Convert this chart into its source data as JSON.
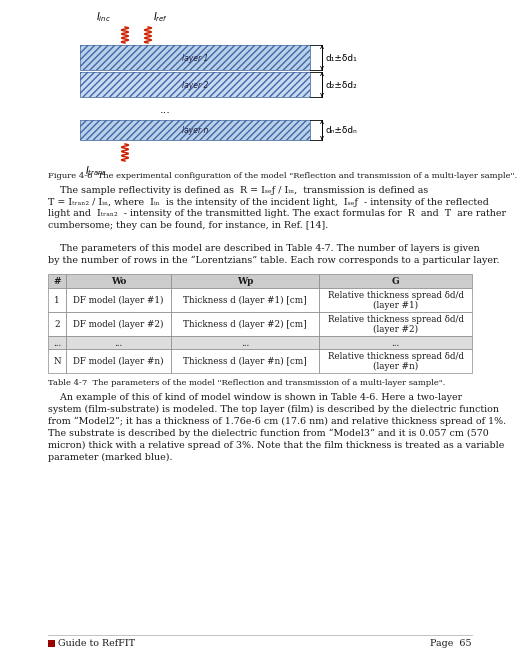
{
  "page_bg": "#ffffff",
  "footer_text": "Guide to RefFIT",
  "footer_page": "Page  65",
  "table_caption": "Table 4-7  The parameters of the model \"Reflection and transmission of a multi-layer sample\".",
  "fig_caption": "Figure 4-6  The experimental configuration of the model \"Reflection and transmission of a multi-layer sample\".",
  "para1_line1": "    The sample reflectivity is defined as  R = I",
  "para1_line2": "ref",
  "para1_line3": " / I",
  "para1_line4": "inc",
  "para1_line5": ",  transmission is defined as",
  "para1_rest": "T = Itrans / Iinc, where  Iinc  is the intensity of the incident light,  Iref  - intensity of the reflected\nlight and  Itrans  - intensity of the transmitted light. The exact formulas for  R  and  T  are rather\ncumbersome; they can be found, for instance, in Ref. [14].",
  "para2": "    The parameters of this model are described in Table 4-7. The number of layers is given\nby the number of rows in the “Lorentzians” table. Each row corresponds to a particular layer.",
  "para3": "    An example of this of kind of model window is shown in Table 4-6. Here a two-layer\nsystem (film-substrate) is modeled. The top layer (film) is described by the dielectric function\nfrom “Model2”; it has a thickness of 1.76e-6 cm (17.6 nm) and relative thickness spread of 1%.\nThe substrate is described by the dielectric function from “Model3” and it is 0.057 cm (570\nmicron) thick with a relative spread of 3%. Note that the film thickness is treated as a variable\nparameter (marked blue).",
  "table_headers": [
    "#",
    "Wo",
    "Wp",
    "G"
  ],
  "table_rows": [
    [
      "1",
      "DF model (layer #1)",
      "Thickness d (layer #1) [cm]",
      "Relative thickness spread δd/d\n(layer #1)"
    ],
    [
      "2",
      "DF model (layer #2)",
      "Thickness d (layer #2) [cm]",
      "Relative thickness spread δd/d\n(layer #2)"
    ],
    [
      "...",
      "...",
      "...",
      "..."
    ],
    [
      "N",
      "DF model (layer #n)",
      "Thickness d (layer #n) [cm]",
      "Relative thickness spread δd/d\n(layer #n)"
    ]
  ],
  "layer_fill1": "#b8d0e8",
  "layer_fill2": "#c8daf0",
  "layer_edge": "#5577aa",
  "hatch_color": "#4466aa",
  "red_color": "#cc2200",
  "header_bg": "#cccccc",
  "row_bg": "#ffffff",
  "dots_bg": "#dddddd",
  "footer_sq": "#990000",
  "table_edge": "#888888",
  "text_color": "#1a1a1a"
}
